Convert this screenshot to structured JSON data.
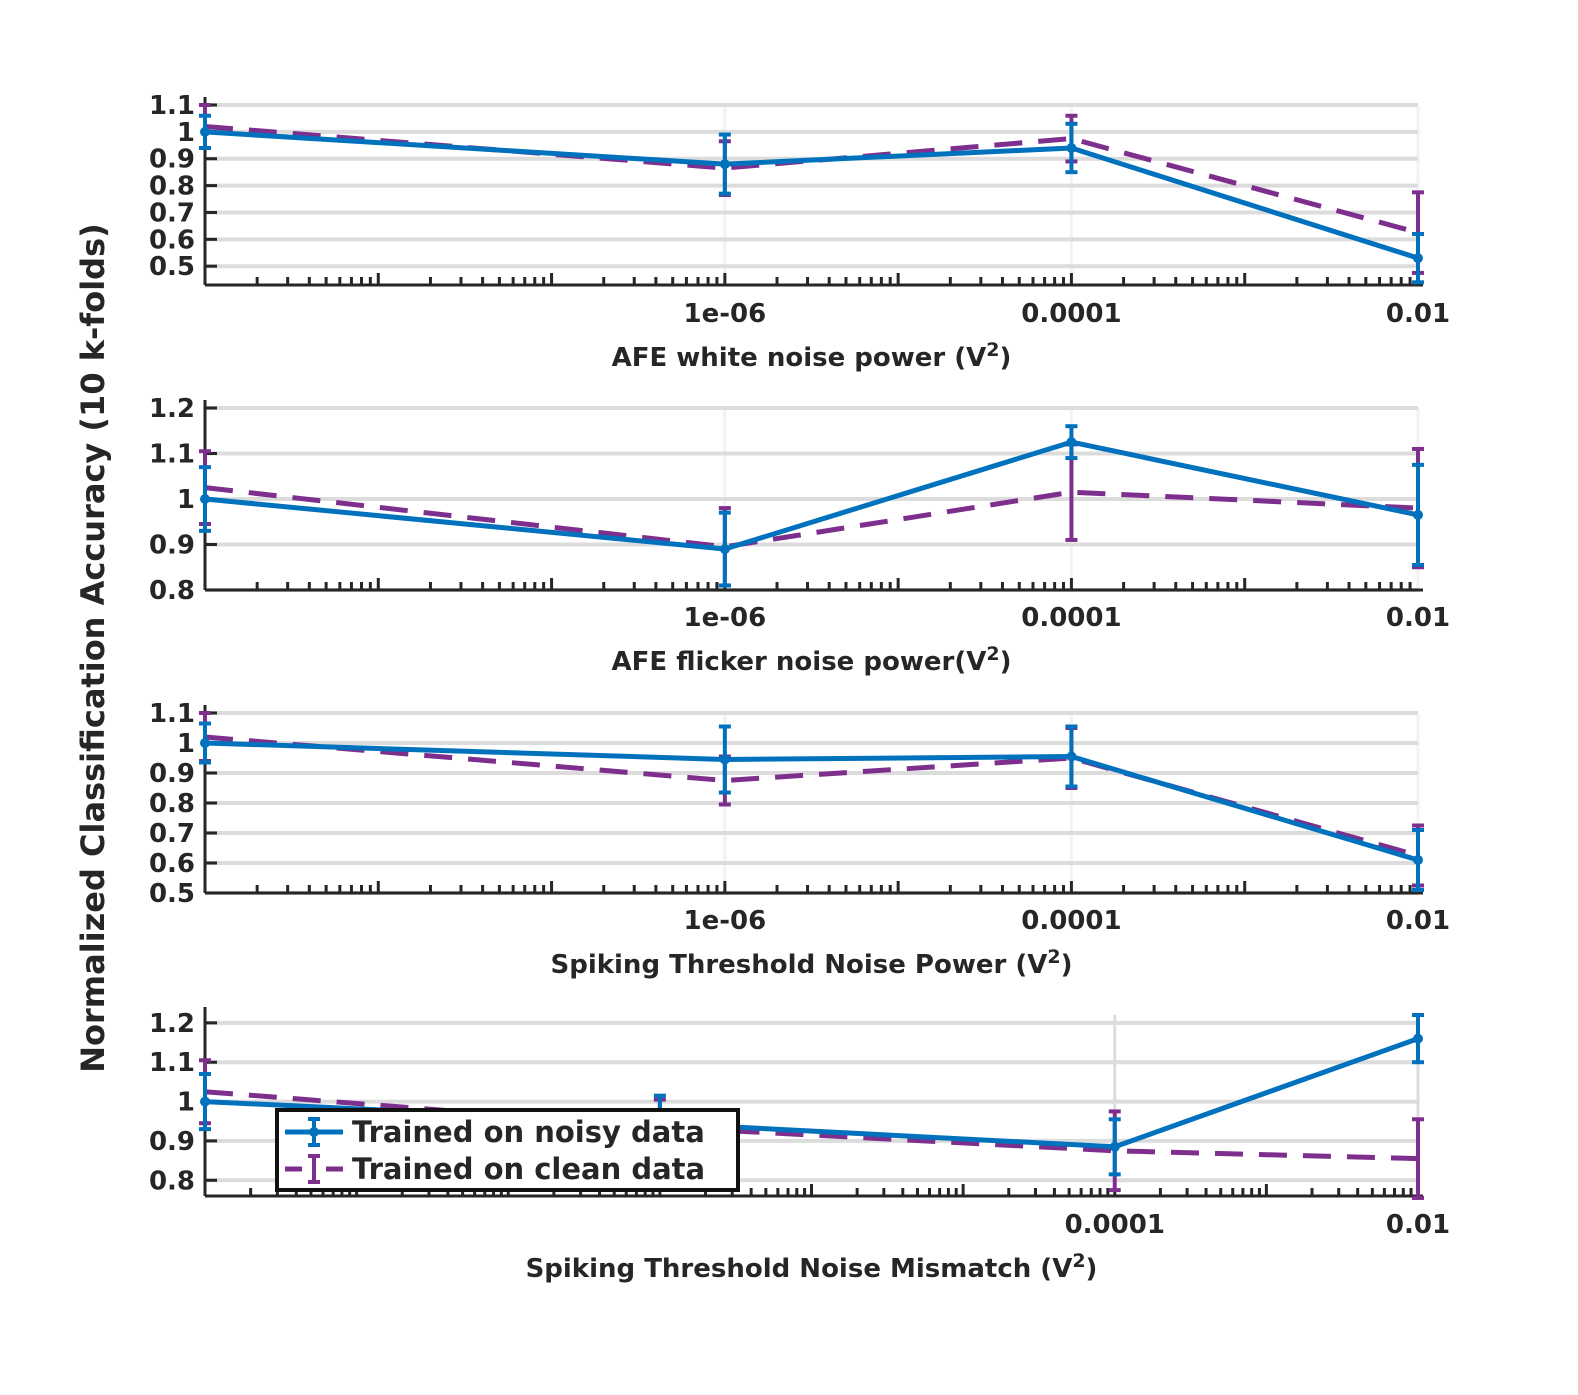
{
  "ylabel": "Normalized Classification Accuracy (10 k-folds)",
  "colors": {
    "noisy": "#0072BD",
    "clean": "#7E2F8E",
    "grid": "#dcdcdc",
    "axis": "#262626"
  },
  "legend": {
    "placement": "inside, lower-left of bottom panel",
    "entries": [
      {
        "series": "noisy",
        "label": "Trained on noisy data"
      },
      {
        "series": "clean",
        "label": "Trained on clean data"
      }
    ]
  },
  "chart_data": [
    {
      "type": "line",
      "xscale": "log",
      "xlabel": "AFE white noise power (V",
      "xlabel_sup": "2",
      "xlabel_tail": ")",
      "xlim": [
        1e-09,
        0.01
      ],
      "ylim": [
        0.43,
        1.1
      ],
      "yticks": [
        0.5,
        0.6,
        0.7,
        0.8,
        0.9,
        1,
        1.1
      ],
      "ytick_labels": [
        "0.5",
        "0.6",
        "0.7",
        "0.8",
        "0.9",
        "1",
        "1.1"
      ],
      "xticks": [
        1e-06,
        0.0001,
        0.01
      ],
      "xtick_labels": [
        "1e-06",
        "0.0001",
        "0.01"
      ],
      "grid": true,
      "series": [
        {
          "key": "noisy",
          "name": "Trained on noisy data",
          "x": [
            1e-09,
            1e-06,
            0.0001,
            0.01
          ],
          "y": [
            1.0,
            0.88,
            0.94,
            0.53
          ],
          "err": [
            0.06,
            0.11,
            0.09,
            0.09
          ]
        },
        {
          "key": "clean",
          "name": "Trained on clean data",
          "x": [
            1e-09,
            1e-06,
            0.0001,
            0.01
          ],
          "y": [
            1.02,
            0.865,
            0.975,
            0.625
          ],
          "err": [
            0.08,
            0.1,
            0.085,
            0.15
          ]
        }
      ]
    },
    {
      "type": "line",
      "xscale": "log",
      "xlabel": "AFE flicker noise power(V",
      "xlabel_sup": "2",
      "xlabel_tail": ")",
      "xlim": [
        1e-09,
        0.01
      ],
      "ylim": [
        0.8,
        1.2
      ],
      "yticks": [
        0.8,
        0.9,
        1,
        1.1,
        1.2
      ],
      "ytick_labels": [
        "0.8",
        "0.9",
        "1",
        "1.1",
        "1.2"
      ],
      "xticks": [
        1e-06,
        0.0001,
        0.01
      ],
      "xtick_labels": [
        "1e-06",
        "0.0001",
        "0.01"
      ],
      "grid": true,
      "series": [
        {
          "key": "noisy",
          "name": "Trained on noisy data",
          "x": [
            1e-09,
            1e-06,
            0.0001,
            0.01
          ],
          "y": [
            1.0,
            0.89,
            1.125,
            0.965
          ],
          "err": [
            0.07,
            0.08,
            0.035,
            0.11
          ]
        },
        {
          "key": "clean",
          "name": "Trained on clean data",
          "x": [
            1e-09,
            1e-06,
            0.0001,
            0.01
          ],
          "y": [
            1.025,
            0.895,
            1.015,
            0.98
          ],
          "err": [
            0.08,
            0.085,
            0.105,
            0.13
          ]
        }
      ]
    },
    {
      "type": "line",
      "xscale": "log",
      "xlabel": "Spiking Threshold Noise Power (V",
      "xlabel_sup": "2",
      "xlabel_tail": ")",
      "xlim": [
        1e-09,
        0.01
      ],
      "ylim": [
        0.5,
        1.1
      ],
      "yticks": [
        0.5,
        0.6,
        0.7,
        0.8,
        0.9,
        1,
        1.1
      ],
      "ytick_labels": [
        "0.5",
        "0.6",
        "0.7",
        "0.8",
        "0.9",
        "1",
        "1.1"
      ],
      "xticks": [
        1e-06,
        0.0001,
        0.01
      ],
      "xtick_labels": [
        "1e-06",
        "0.0001",
        "0.01"
      ],
      "grid": true,
      "series": [
        {
          "key": "noisy",
          "name": "Trained on noisy data",
          "x": [
            1e-09,
            1e-06,
            0.0001,
            0.01
          ],
          "y": [
            1.0,
            0.945,
            0.955,
            0.61
          ],
          "err": [
            0.065,
            0.11,
            0.1,
            0.1
          ]
        },
        {
          "key": "clean",
          "name": "Trained on clean data",
          "x": [
            1e-09,
            1e-06,
            0.0001,
            0.01
          ],
          "y": [
            1.02,
            0.875,
            0.95,
            0.625
          ],
          "err": [
            0.08,
            0.08,
            0.1,
            0.1
          ]
        }
      ]
    },
    {
      "type": "line",
      "xscale": "log",
      "xlabel": "Spiking Threshold Noise Mismatch (V",
      "xlabel_sup": "2",
      "xlabel_tail": ")",
      "xlim": [
        1e-10,
        0.01
      ],
      "ylim": [
        0.76,
        1.22
      ],
      "yticks": [
        0.8,
        0.9,
        1,
        1.1,
        1.2
      ],
      "ytick_labels": [
        "0.8",
        "0.9",
        "1",
        "1.1",
        "1.2"
      ],
      "xticks": [
        0.0001,
        0.01
      ],
      "xtick_labels": [
        "0.0001",
        "0.01"
      ],
      "grid": true,
      "series": [
        {
          "key": "noisy",
          "name": "Trained on noisy data",
          "x": [
            1e-10,
            1e-07,
            0.0001,
            0.01
          ],
          "y": [
            1.0,
            0.945,
            0.885,
            1.16
          ],
          "err": [
            0.07,
            0.07,
            0.07,
            0.06
          ]
        },
        {
          "key": "clean",
          "name": "Trained on clean data",
          "x": [
            1e-10,
            1e-07,
            0.0001,
            0.01
          ],
          "y": [
            1.025,
            0.935,
            0.875,
            0.855
          ],
          "err": [
            0.08,
            0.07,
            0.1,
            0.1
          ]
        }
      ]
    }
  ]
}
